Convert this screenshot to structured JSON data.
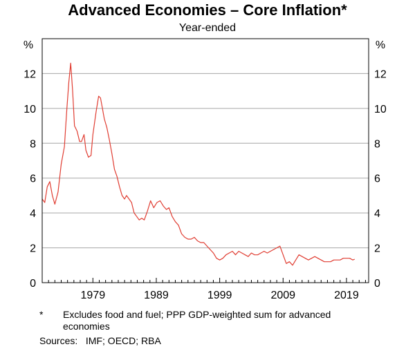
{
  "chart_data": {
    "type": "line",
    "title": "Advanced Economies – Core Inflation*",
    "subtitle": "Year-ended",
    "ylabel_left": "%",
    "ylabel_right": "%",
    "ylim": [
      0,
      14
    ],
    "yticks": [
      0,
      2,
      4,
      6,
      8,
      10,
      12
    ],
    "xlim": [
      1971,
      2022.5
    ],
    "xticks": [
      1979,
      1989,
      1999,
      2009,
      2019
    ],
    "grid": true,
    "series": [
      {
        "name": "Core inflation (year-ended)",
        "color": "#e03c31",
        "x": [
          1971.0,
          1971.4,
          1971.8,
          1972.2,
          1972.6,
          1973.0,
          1973.5,
          1974.0,
          1974.5,
          1974.9,
          1975.2,
          1975.5,
          1975.8,
          1976.1,
          1976.5,
          1976.9,
          1977.2,
          1977.6,
          1977.9,
          1978.3,
          1978.7,
          1979.0,
          1979.5,
          1979.9,
          1980.2,
          1980.5,
          1980.8,
          1981.2,
          1981.6,
          1982.0,
          1982.4,
          1982.8,
          1983.2,
          1983.6,
          1984.0,
          1984.3,
          1984.7,
          1985.1,
          1985.5,
          1985.9,
          1986.3,
          1986.7,
          1987.1,
          1987.6,
          1988.1,
          1988.6,
          1989.1,
          1989.6,
          1990.1,
          1990.6,
          1991.0,
          1991.5,
          1992.0,
          1992.5,
          1993.0,
          1993.5,
          1994.0,
          1994.5,
          1995.0,
          1995.5,
          1996.0,
          1996.5,
          1997.0,
          1997.5,
          1998.0,
          1998.5,
          1999.0,
          1999.5,
          2000.0,
          2000.5,
          2001.0,
          2001.5,
          2002.0,
          2002.5,
          2003.0,
          2003.5,
          2004.0,
          2004.5,
          2005.0,
          2005.5,
          2006.0,
          2006.5,
          2007.0,
          2007.5,
          2008.0,
          2008.5,
          2009.0,
          2009.5,
          2010.0,
          2010.5,
          2011.0,
          2011.5,
          2012.0,
          2012.5,
          2013.0,
          2013.5,
          2014.0,
          2014.5,
          2015.0,
          2015.5,
          2016.0,
          2016.5,
          2017.0,
          2017.5,
          2018.0,
          2018.5,
          2019.0,
          2019.5,
          2020.0,
          2020.3
        ],
        "values": [
          4.8,
          4.6,
          5.5,
          5.8,
          5.0,
          4.5,
          5.2,
          6.8,
          7.8,
          10.0,
          11.5,
          12.6,
          11.0,
          9.0,
          8.7,
          8.1,
          8.1,
          8.5,
          7.6,
          7.2,
          7.3,
          8.5,
          9.8,
          10.7,
          10.6,
          10.0,
          9.4,
          8.9,
          8.2,
          7.4,
          6.5,
          6.1,
          5.5,
          5.0,
          4.8,
          5.0,
          4.8,
          4.6,
          4.0,
          3.8,
          3.6,
          3.7,
          3.6,
          4.1,
          4.7,
          4.3,
          4.6,
          4.7,
          4.4,
          4.2,
          4.3,
          3.8,
          3.5,
          3.3,
          2.8,
          2.6,
          2.5,
          2.5,
          2.6,
          2.4,
          2.3,
          2.3,
          2.1,
          1.9,
          1.7,
          1.4,
          1.3,
          1.4,
          1.6,
          1.7,
          1.8,
          1.6,
          1.8,
          1.7,
          1.6,
          1.5,
          1.7,
          1.6,
          1.6,
          1.7,
          1.8,
          1.7,
          1.8,
          1.9,
          2.0,
          2.1,
          1.6,
          1.1,
          1.2,
          1.0,
          1.3,
          1.6,
          1.5,
          1.4,
          1.3,
          1.4,
          1.5,
          1.4,
          1.3,
          1.2,
          1.2,
          1.2,
          1.3,
          1.3,
          1.3,
          1.4,
          1.4,
          1.4,
          1.3,
          1.35
        ]
      }
    ]
  },
  "footnote": {
    "marker": "*",
    "text": "Excludes food and fuel; PPP GDP-weighted sum for advanced economies"
  },
  "sources": "Sources:   IMF; OECD; RBA"
}
